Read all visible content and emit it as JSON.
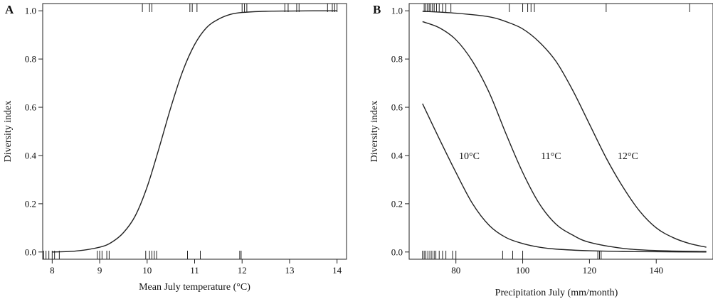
{
  "chart_data": [
    {
      "type": "line",
      "panel_label": "A",
      "xlabel": "Mean July temperature (°C)",
      "ylabel": "Diversity index",
      "xlim": [
        7.8,
        14.2
      ],
      "ylim": [
        -0.03,
        1.03
      ],
      "xticks": [
        8,
        9,
        10,
        11,
        12,
        13,
        14
      ],
      "xtick_labels": [
        "8",
        "9",
        "10",
        "11",
        "12",
        "13",
        "14"
      ],
      "yticks": [
        0.0,
        0.2,
        0.4,
        0.6,
        0.8,
        1.0
      ],
      "ytick_labels": [
        "0.0",
        "0.2",
        "0.4",
        "0.6",
        "0.8",
        "1.0"
      ],
      "grid": false,
      "series": [
        {
          "x": [
            8.0,
            8.5,
            9.0,
            9.25,
            9.5,
            9.75,
            10.0,
            10.25,
            10.5,
            10.75,
            11.0,
            11.25,
            11.5,
            11.75,
            12.0,
            12.5,
            13.0,
            13.5,
            14.0
          ],
          "y": [
            0.0,
            0.004,
            0.02,
            0.04,
            0.08,
            0.15,
            0.27,
            0.43,
            0.6,
            0.75,
            0.86,
            0.93,
            0.965,
            0.985,
            0.993,
            0.998,
            0.999,
            1.0,
            1.0
          ]
        }
      ],
      "rug_bottom": [
        7.82,
        7.87,
        7.93,
        8.0,
        8.05,
        8.15,
        8.95,
        9.0,
        9.05,
        9.15,
        9.2,
        9.97,
        10.05,
        10.1,
        10.15,
        10.2,
        10.85,
        11.12,
        11.95,
        11.98
      ],
      "rug_top": [
        9.9,
        10.05,
        10.1,
        10.9,
        10.95,
        11.05,
        12.0,
        12.05,
        12.1,
        12.9,
        12.97,
        13.15,
        13.2,
        13.8,
        13.9,
        13.95,
        14.0
      ]
    },
    {
      "type": "line",
      "panel_label": "B",
      "xlabel": "Precipitation July (mm/month)",
      "ylabel": "Diversity index",
      "xlim": [
        66,
        157
      ],
      "ylim": [
        -0.03,
        1.03
      ],
      "xticks": [
        80,
        100,
        120,
        140
      ],
      "xtick_labels": [
        "80",
        "100",
        "120",
        "140"
      ],
      "yticks": [
        0.0,
        0.2,
        0.4,
        0.6,
        0.8,
        1.0
      ],
      "ytick_labels": [
        "0.0",
        "0.2",
        "0.4",
        "0.6",
        "0.8",
        "1.0"
      ],
      "grid": false,
      "series": [
        {
          "name": "10°C",
          "x": [
            70,
            75,
            80,
            85,
            90,
            95,
            100,
            105,
            110,
            120,
            130,
            140,
            155
          ],
          "y": [
            0.615,
            0.47,
            0.33,
            0.2,
            0.11,
            0.06,
            0.035,
            0.02,
            0.012,
            0.005,
            0.002,
            0.001,
            0.0
          ],
          "label_pos": [
            84,
            0.4
          ]
        },
        {
          "name": "11°C",
          "x": [
            70,
            75,
            80,
            85,
            90,
            95,
            100,
            105,
            110,
            115,
            120,
            130,
            140,
            155
          ],
          "y": [
            0.955,
            0.93,
            0.88,
            0.79,
            0.66,
            0.49,
            0.33,
            0.2,
            0.115,
            0.07,
            0.04,
            0.015,
            0.006,
            0.002
          ],
          "label_pos": [
            108.5,
            0.4
          ]
        },
        {
          "name": "12°C",
          "x": [
            70,
            80,
            90,
            95,
            100,
            105,
            110,
            115,
            120,
            125,
            130,
            135,
            140,
            145,
            150,
            155
          ],
          "y": [
            0.998,
            0.99,
            0.975,
            0.955,
            0.925,
            0.87,
            0.79,
            0.67,
            0.53,
            0.39,
            0.27,
            0.17,
            0.1,
            0.06,
            0.035,
            0.02
          ],
          "label_pos": [
            131.5,
            0.4
          ]
        }
      ],
      "rug_bottom": [
        70,
        70.5,
        71,
        71.6,
        72.2,
        72.8,
        73.5,
        74,
        75,
        76,
        77,
        79,
        80,
        94,
        97,
        100,
        122.5,
        123,
        123.5
      ],
      "rug_top": [
        70.5,
        71,
        71.5,
        72,
        72.5,
        73,
        73.5,
        74.2,
        75,
        76,
        77,
        78.5,
        96,
        100,
        101.5,
        102.5,
        103.5,
        125,
        150
      ]
    }
  ]
}
